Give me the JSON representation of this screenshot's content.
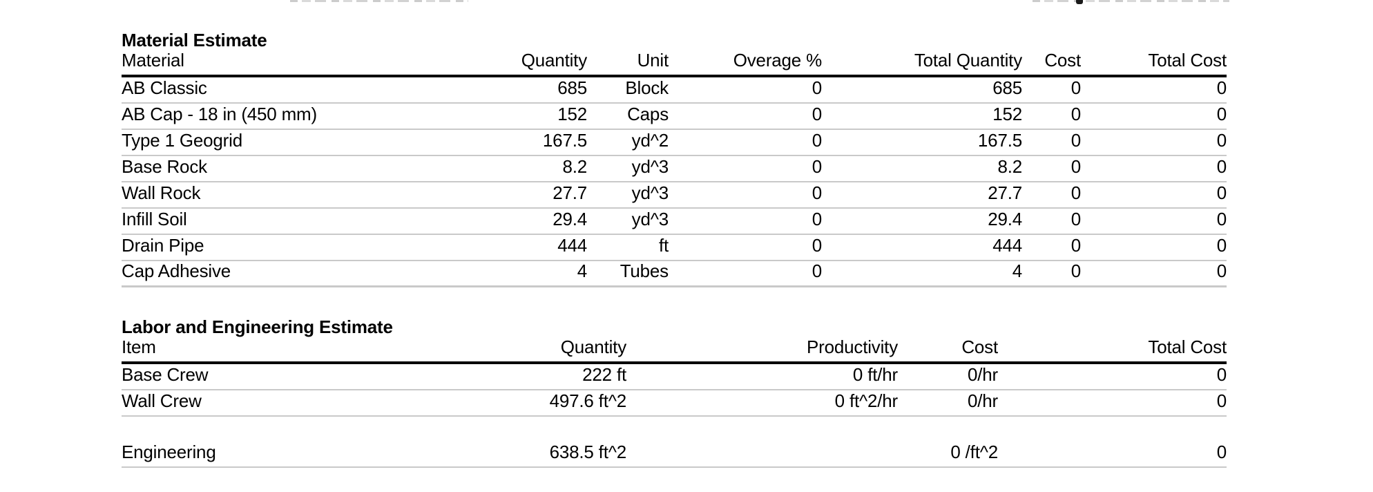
{
  "material_estimate": {
    "title": "Material Estimate",
    "columns": [
      "Material",
      "Quantity",
      "Unit",
      "Overage %",
      "Total Quantity",
      "Cost",
      "Total Cost"
    ],
    "rows": [
      {
        "material": "AB Classic",
        "quantity": "685",
        "unit": "Block",
        "overage": "0",
        "total_quantity": "685",
        "cost": "0",
        "total_cost": "0"
      },
      {
        "material": "AB Cap - 18 in (450 mm)",
        "quantity": "152",
        "unit": "Caps",
        "overage": "0",
        "total_quantity": "152",
        "cost": "0",
        "total_cost": "0"
      },
      {
        "material": "Type 1 Geogrid",
        "quantity": "167.5",
        "unit": "yd^2",
        "overage": "0",
        "total_quantity": "167.5",
        "cost": "0",
        "total_cost": "0"
      },
      {
        "material": "Base Rock",
        "quantity": "8.2",
        "unit": "yd^3",
        "overage": "0",
        "total_quantity": "8.2",
        "cost": "0",
        "total_cost": "0"
      },
      {
        "material": "Wall Rock",
        "quantity": "27.7",
        "unit": "yd^3",
        "overage": "0",
        "total_quantity": "27.7",
        "cost": "0",
        "total_cost": "0"
      },
      {
        "material": "Infill Soil",
        "quantity": "29.4",
        "unit": "yd^3",
        "overage": "0",
        "total_quantity": "29.4",
        "cost": "0",
        "total_cost": "0"
      },
      {
        "material": "Drain Pipe",
        "quantity": "444",
        "unit": "ft",
        "overage": "0",
        "total_quantity": "444",
        "cost": "0",
        "total_cost": "0"
      },
      {
        "material": "Cap Adhesive",
        "quantity": "4",
        "unit": "Tubes",
        "overage": "0",
        "total_quantity": "4",
        "cost": "0",
        "total_cost": "0"
      }
    ]
  },
  "labor_estimate": {
    "title": "Labor and Engineering Estimate",
    "columns": [
      "Item",
      "Quantity",
      "Productivity",
      "Cost",
      "Total Cost"
    ],
    "rows": [
      {
        "item": "Base Crew",
        "quantity": "222 ft",
        "productivity": "0 ft/hr",
        "cost": "0/hr",
        "total_cost": "0"
      },
      {
        "item": "Wall Crew",
        "quantity": "497.6 ft^2",
        "productivity": "0 ft^2/hr",
        "cost": "0/hr",
        "total_cost": "0"
      },
      {
        "item": "Engineering",
        "quantity": "638.5 ft^2",
        "productivity": "",
        "cost": "0 /ft^2",
        "total_cost": "0"
      }
    ]
  },
  "colors": {
    "text": "#000000",
    "rule_heavy": "#000000",
    "rule_light": "#c9c9c9",
    "background": "#ffffff"
  }
}
